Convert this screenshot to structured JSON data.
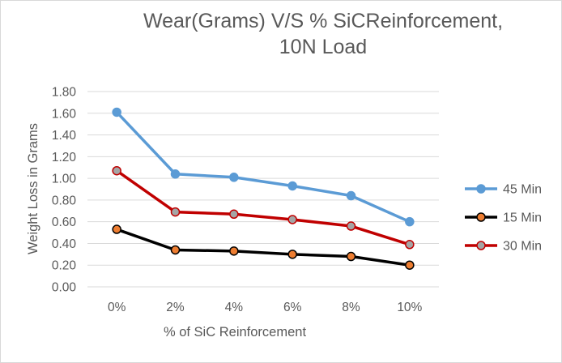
{
  "chart_data": {
    "type": "line",
    "title_line1": "Wear(Grams) V/S % SiCReinforcement,",
    "title_line2": "10N Load",
    "xlabel": "% of SiC Reinforcement",
    "ylabel": "Weight Loss in Grams",
    "categories": [
      "0%",
      "2%",
      "4%",
      "6%",
      "8%",
      "10%"
    ],
    "ylim": [
      0,
      1.8
    ],
    "ytick_step": 0.2,
    "ytick_labels": [
      "0.00",
      "0.20",
      "0.40",
      "0.60",
      "0.80",
      "1.00",
      "1.20",
      "1.40",
      "1.60",
      "1.80"
    ],
    "grid": true,
    "legend_position": "right",
    "series": [
      {
        "name": "45 Min",
        "values": [
          1.61,
          1.04,
          1.01,
          0.93,
          0.84,
          0.6
        ],
        "color": "#5b9bd5",
        "marker_fill": "#5b9bd5"
      },
      {
        "name": "15 Min",
        "values": [
          0.53,
          0.34,
          0.33,
          0.3,
          0.28,
          0.2
        ],
        "color": "#000000",
        "marker_fill": "#ed7d31"
      },
      {
        "name": "30 Min",
        "values": [
          1.07,
          0.69,
          0.67,
          0.62,
          0.56,
          0.39
        ],
        "color": "#c00000",
        "marker_fill": "#a5a5a5"
      }
    ]
  }
}
